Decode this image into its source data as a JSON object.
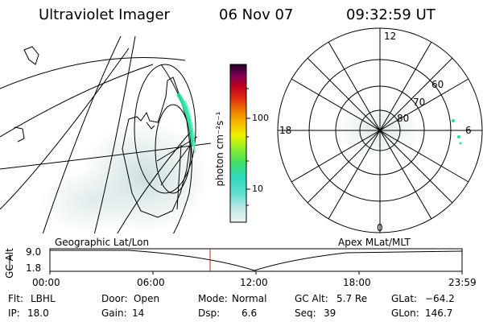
{
  "header": {
    "title": "Ultraviolet Imager",
    "date": "06 Nov 07",
    "time": "09:32:59 UT"
  },
  "colorbar": {
    "label": "photon cm⁻²s⁻¹",
    "ticks": [
      "100",
      "10"
    ],
    "scale": "log"
  },
  "polar": {
    "mlt_labels": [
      "12",
      "18",
      "6",
      "0"
    ],
    "lat_labels": [
      "60",
      "70",
      "80"
    ]
  },
  "panel_labels": {
    "left": "Geographic Lat/Lon",
    "right": "Apex MLat/MLT"
  },
  "alt_plot": {
    "ylabel": "GC Alt",
    "yticks": [
      "9.0",
      "1.8"
    ],
    "xticks": [
      "00:00",
      "06:00",
      "12:00",
      "18:00",
      "23:59"
    ],
    "current_time_marker": "09:32:59"
  },
  "footer": {
    "flt_label": "Flt:",
    "flt_value": "LBHL",
    "door_label": "Door:",
    "door_value": "Open",
    "mode_label": "Mode:",
    "mode_value": "Normal",
    "gcalt_label": "GC Alt:",
    "gcalt_value": "5.7 Re",
    "glat_label": "GLat:",
    "glat_value": "−64.2",
    "ip_label": "IP:",
    "ip_value": "18.0",
    "gain_label": "Gain:",
    "gain_value": "14",
    "dsp_label": "Dsp:",
    "dsp_value": "6.6",
    "seq_label": "Seq:",
    "seq_value": "39",
    "glon_label": "GLon:",
    "glon_value": "146.7"
  },
  "colors": {
    "aurora_bright": "#20e0a0",
    "aurora_faint": "#c8dcdc",
    "marker": "#c02020"
  }
}
